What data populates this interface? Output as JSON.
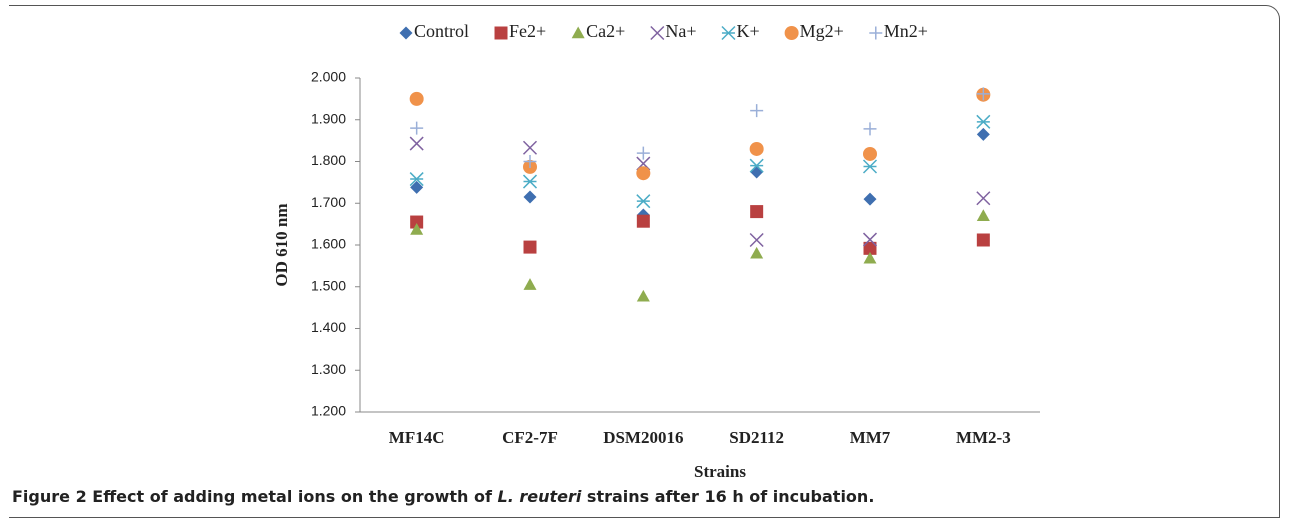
{
  "chart_data": {
    "type": "scatter",
    "x_label": "Strains",
    "y_label": "OD 610 nm",
    "categories": [
      "MF14C",
      "CF2-7F",
      "DSM20016",
      "SD2112",
      "MM7",
      "MM2-3"
    ],
    "ylim": [
      1.2,
      2.0
    ],
    "yticks": [
      {
        "value": 1.2,
        "label": "1.200"
      },
      {
        "value": 1.3,
        "label": "1.300"
      },
      {
        "value": 1.4,
        "label": "1.400"
      },
      {
        "value": 1.5,
        "label": "1.500"
      },
      {
        "value": 1.6,
        "label": "1.600"
      },
      {
        "value": 1.7,
        "label": "1.700"
      },
      {
        "value": 1.8,
        "label": "1.800"
      },
      {
        "value": 1.9,
        "label": "1.900"
      },
      {
        "value": 2.0,
        "label": "2.000"
      }
    ],
    "legend": "top",
    "series": [
      {
        "name": "Control",
        "color": "#3f6fb0",
        "marker": "diamond",
        "values": [
          1.738,
          1.715,
          1.672,
          1.775,
          1.71,
          1.865
        ]
      },
      {
        "name": "Fe2+",
        "color": "#b94040",
        "marker": "square",
        "values": [
          1.655,
          1.595,
          1.657,
          1.68,
          1.592,
          1.612
        ]
      },
      {
        "name": "Ca2+",
        "color": "#8fac4f",
        "marker": "triangle",
        "values": [
          1.637,
          1.505,
          1.477,
          1.58,
          1.568,
          1.67
        ]
      },
      {
        "name": "Na+",
        "color": "#7f62a0",
        "marker": "x",
        "values": [
          1.843,
          1.833,
          1.795,
          1.612,
          1.613,
          1.712
        ]
      },
      {
        "name": "K+",
        "color": "#4bacc6",
        "marker": "star",
        "values": [
          1.758,
          1.752,
          1.705,
          1.79,
          1.788,
          1.895
        ]
      },
      {
        "name": "Mg2+",
        "color": "#f0924a",
        "marker": "circle",
        "values": [
          1.95,
          1.787,
          1.772,
          1.83,
          1.818,
          1.96
        ]
      },
      {
        "name": "Mn2+",
        "color": "#9aafd8",
        "marker": "plus",
        "values": [
          1.88,
          1.8,
          1.82,
          1.922,
          1.878,
          1.962
        ]
      }
    ]
  },
  "caption": {
    "label": "Figure 2",
    "text_before": " Effect of adding metal ions on the growth of ",
    "italic": "L. reuteri",
    "text_after": " strains after 16 h of incubation."
  }
}
